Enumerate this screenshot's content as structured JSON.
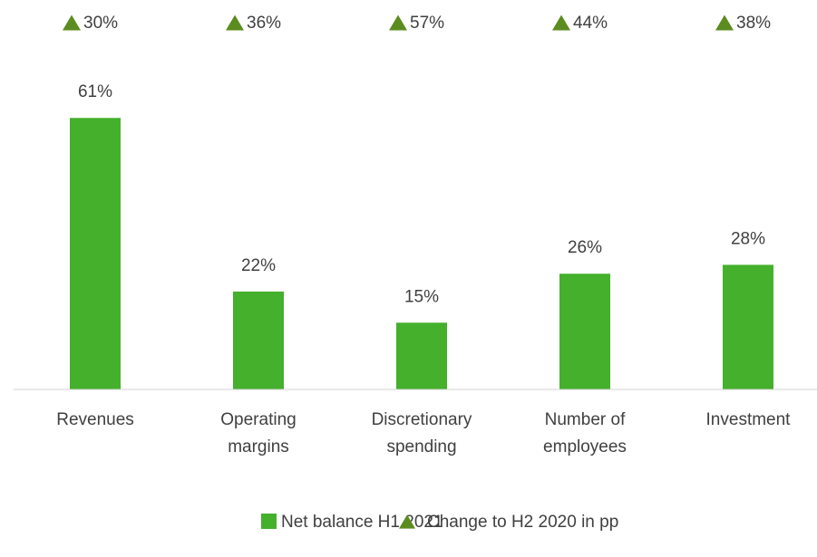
{
  "chart_data": {
    "type": "bar",
    "categories": [
      [
        "Revenues"
      ],
      [
        "Operating",
        "margins"
      ],
      [
        "Discretionary",
        "spending"
      ],
      [
        "Number of",
        "employees"
      ],
      [
        "Investment"
      ]
    ],
    "series": [
      {
        "name": "Net balance H1 2021",
        "color": "#44b02c",
        "values": [
          61,
          22,
          15,
          26,
          28
        ],
        "value_labels": [
          "61%",
          "22%",
          "15%",
          "26%",
          "28%"
        ]
      },
      {
        "name": "Change to H2 2020 in pp",
        "color": "#5b8c1f",
        "marker": "triangle",
        "values": [
          30,
          36,
          57,
          44,
          38
        ],
        "value_labels": [
          "30%",
          "36%",
          "57%",
          "44%",
          "38%"
        ]
      }
    ],
    "ylim": [
      0,
      70
    ]
  }
}
